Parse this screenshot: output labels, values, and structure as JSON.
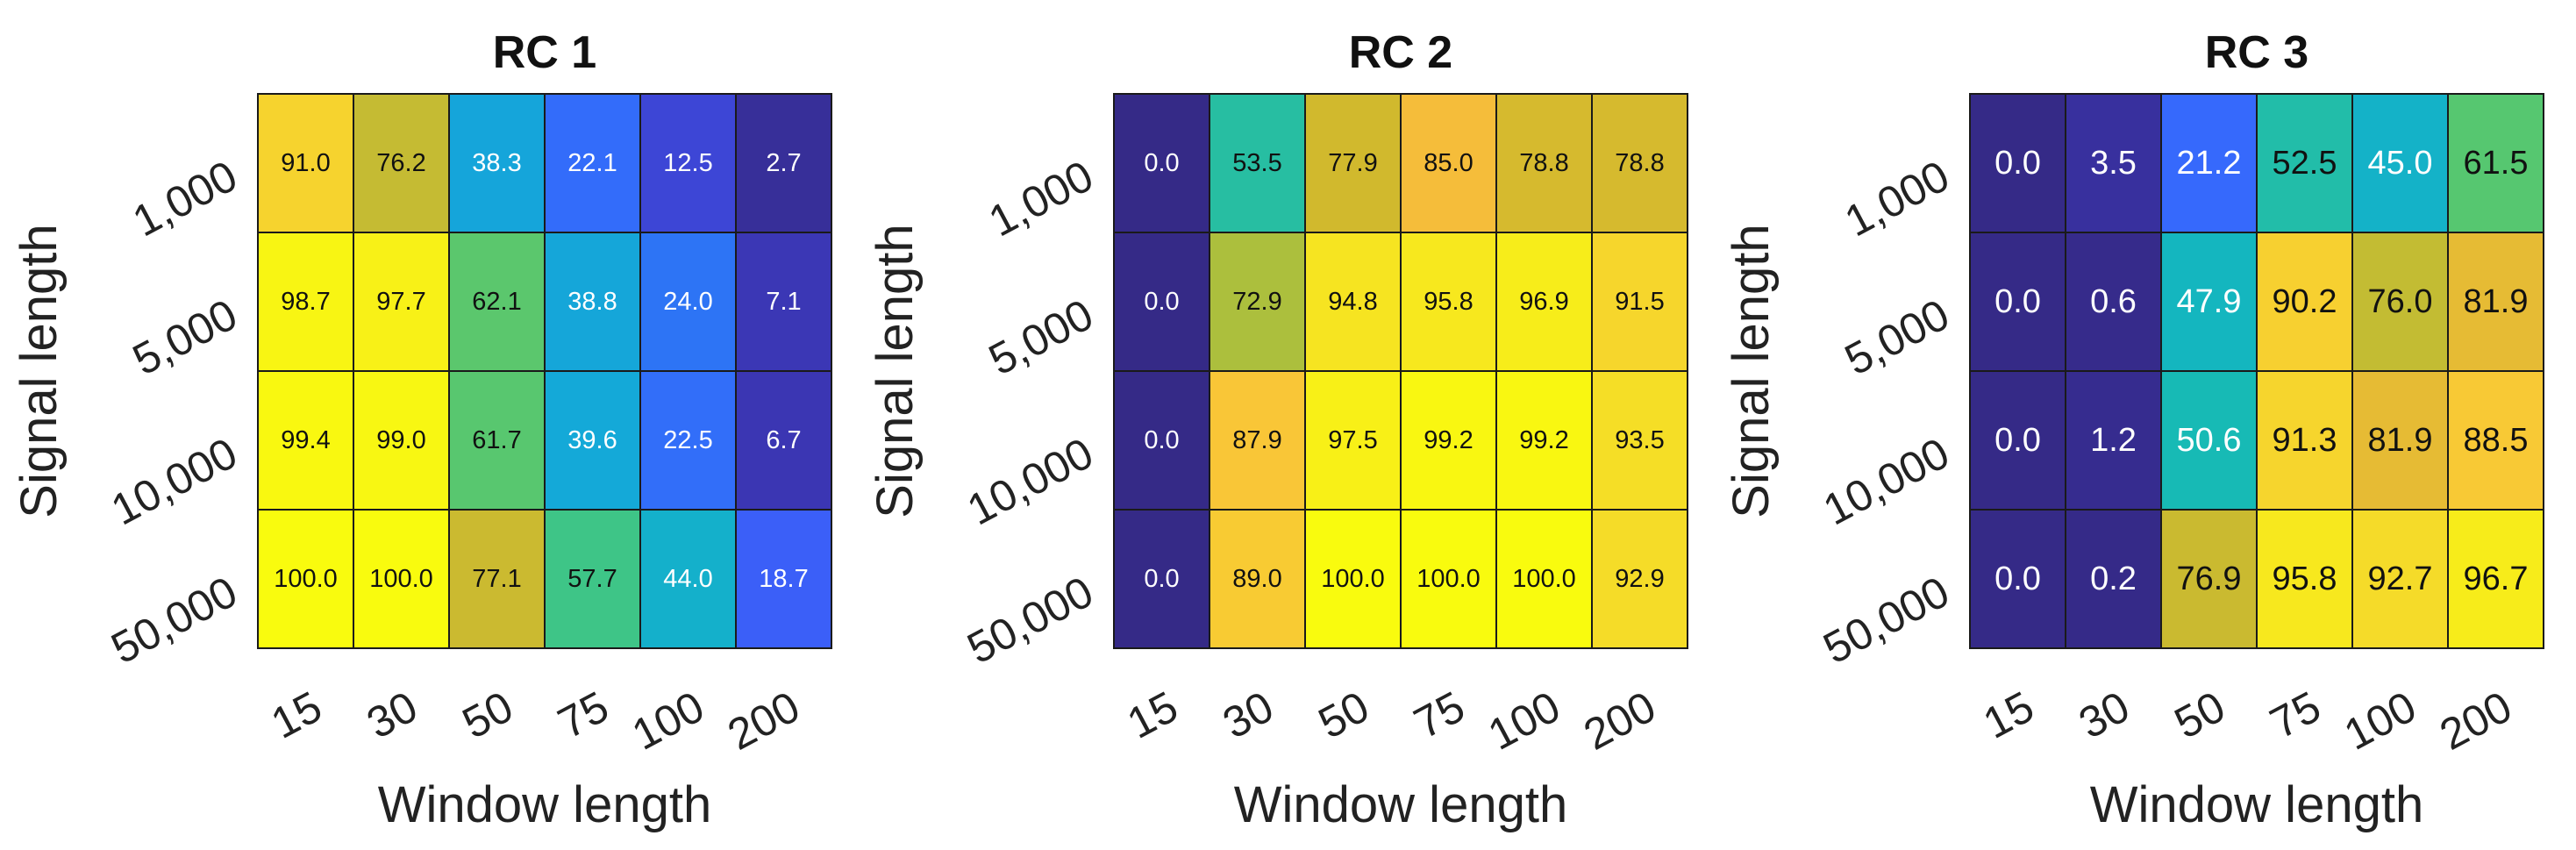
{
  "chart_data": [
    {
      "type": "heatmap",
      "title": "RC 1",
      "xlabel": "Window length",
      "ylabel": "Signal length",
      "x_categories": [
        "15",
        "30",
        "50",
        "75",
        "100",
        "200"
      ],
      "y_categories": [
        "1,000",
        "5,000",
        "10,000",
        "50,000"
      ],
      "values": [
        [
          91.0,
          76.2,
          38.3,
          22.1,
          12.5,
          2.7
        ],
        [
          98.7,
          97.7,
          62.1,
          38.8,
          24.0,
          7.1
        ],
        [
          99.4,
          99.0,
          61.7,
          39.6,
          22.5,
          6.7
        ],
        [
          100.0,
          100.0,
          77.1,
          57.7,
          44.0,
          18.7
        ]
      ],
      "labels": [
        [
          "91.0",
          "76.2",
          "38.3",
          "22.1",
          "12.5",
          "2.7"
        ],
        [
          "98.7",
          "97.7",
          "62.1",
          "38.8",
          "24.0",
          "7.1"
        ],
        [
          "99.4",
          "99.0",
          "61.7",
          "39.6",
          "22.5",
          "6.7"
        ],
        [
          "100.0",
          "100.0",
          "77.1",
          "57.7",
          "44.0",
          "18.7"
        ]
      ],
      "colorscale": "parula",
      "value_range": [
        0,
        100
      ],
      "grid": true
    },
    {
      "type": "heatmap",
      "title": "RC 2",
      "xlabel": "Window length",
      "ylabel": "Signal length",
      "x_categories": [
        "15",
        "30",
        "50",
        "75",
        "100",
        "200"
      ],
      "y_categories": [
        "1,000",
        "5,000",
        "10,000",
        "50,000"
      ],
      "values": [
        [
          0.0,
          53.5,
          77.9,
          85.0,
          78.8,
          78.8
        ],
        [
          0.0,
          72.9,
          94.8,
          95.8,
          96.9,
          91.5
        ],
        [
          0.0,
          87.9,
          97.5,
          99.2,
          99.2,
          93.5
        ],
        [
          0.0,
          89.0,
          100.0,
          100.0,
          100.0,
          92.9
        ]
      ],
      "labels": [
        [
          "0.0",
          "53.5",
          "77.9",
          "85.0",
          "78.8",
          "78.8"
        ],
        [
          "0.0",
          "72.9",
          "94.8",
          "95.8",
          "96.9",
          "91.5"
        ],
        [
          "0.0",
          "87.9",
          "97.5",
          "99.2",
          "99.2",
          "93.5"
        ],
        [
          "0.0",
          "89.0",
          "100.0",
          "100.0",
          "100.0",
          "92.9"
        ]
      ],
      "colorscale": "parula",
      "value_range": [
        0,
        100
      ],
      "grid": true
    },
    {
      "type": "heatmap",
      "title": "RC 3",
      "xlabel": "Window length",
      "ylabel": "Signal length",
      "x_categories": [
        "15",
        "30",
        "50",
        "75",
        "100",
        "200"
      ],
      "y_categories": [
        "1,000",
        "5,000",
        "10,000",
        "50,000"
      ],
      "values": [
        [
          0.0,
          3.5,
          21.2,
          52.5,
          45.0,
          61.5
        ],
        [
          0.0,
          0.6,
          47.9,
          90.2,
          76.0,
          81.9
        ],
        [
          0.0,
          1.2,
          50.6,
          91.3,
          81.9,
          88.5
        ],
        [
          0.0,
          0.2,
          76.9,
          95.8,
          92.7,
          96.7
        ]
      ],
      "labels": [
        [
          "0.0",
          "3.5",
          "21.2",
          "52.5",
          "45.0",
          "61.5"
        ],
        [
          "0.0",
          "0.6",
          "47.9",
          "90.2",
          "76.0",
          "81.9"
        ],
        [
          "0.0",
          "1.2",
          "50.6",
          "91.3",
          "81.9",
          "88.5"
        ],
        [
          "0.0",
          "0.2",
          "76.9",
          "95.8",
          "92.7",
          "96.7"
        ]
      ],
      "colorscale": "parula",
      "value_range": [
        0,
        100
      ],
      "grid": true
    }
  ]
}
